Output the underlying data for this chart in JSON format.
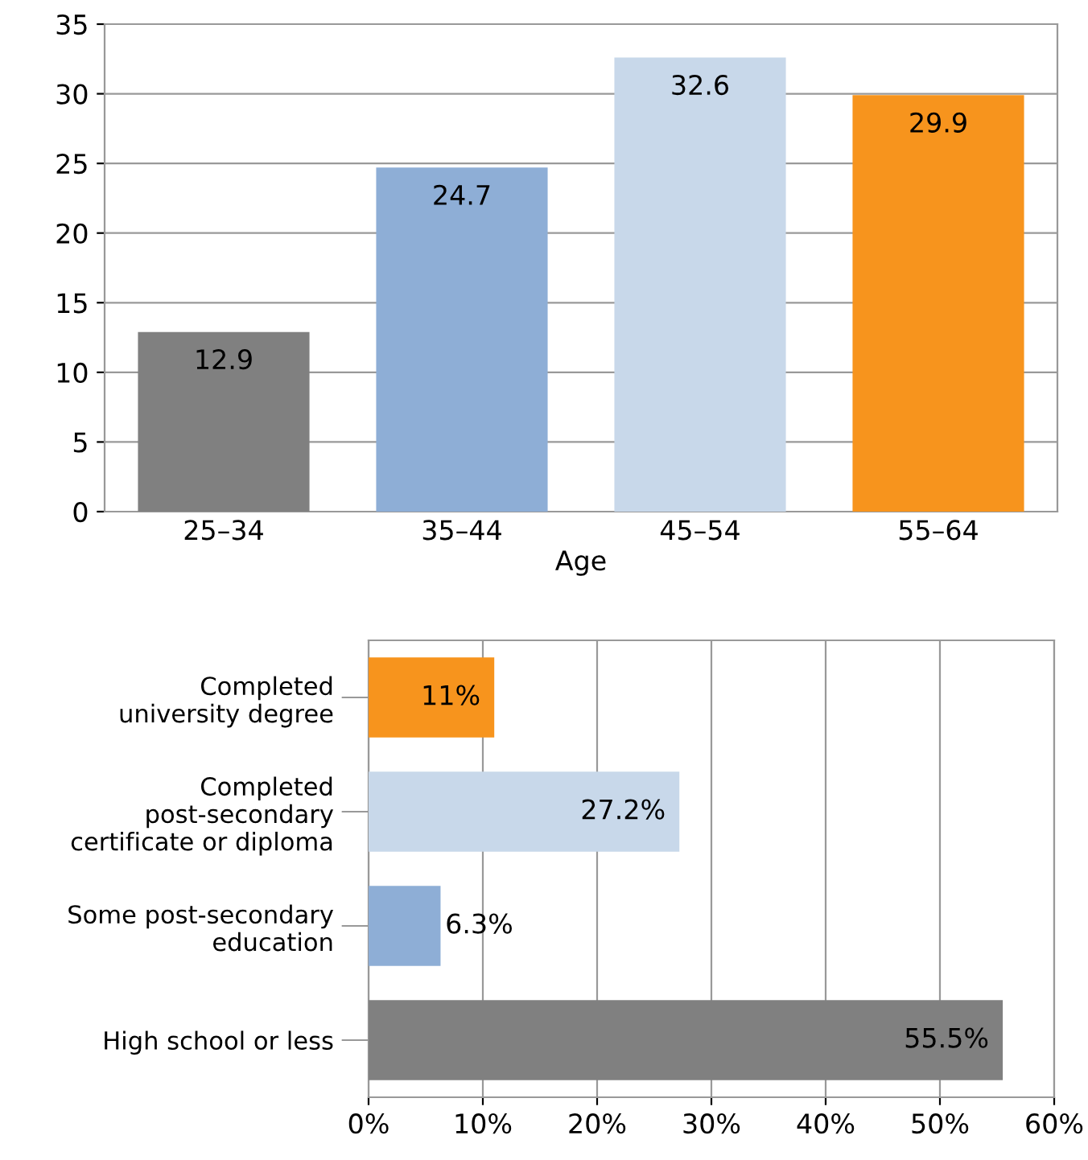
{
  "chart_data": [
    {
      "type": "bar",
      "xlabel": "Age",
      "categories": [
        "25–34",
        "35–44",
        "45–54",
        "55–64"
      ],
      "values": [
        12.9,
        24.7,
        32.6,
        29.9
      ],
      "colors": [
        "#808080",
        "#8eaed6",
        "#c8d8ea",
        "#f7941d"
      ],
      "ylim": [
        0,
        35
      ],
      "yticks": [
        0,
        5,
        10,
        15,
        20,
        25,
        30,
        35
      ],
      "grid": "y",
      "data_labels": true
    },
    {
      "type": "bar",
      "orientation": "horizontal",
      "categories": [
        "Completed\nuniversity degree",
        "Completed\npost-secondary\ncertificate or diploma",
        "Some post-secondary\neducation",
        "High school or less"
      ],
      "values": [
        11,
        27.2,
        6.3,
        55.5
      ],
      "colors": [
        "#f7941d",
        "#c8d8ea",
        "#8eaed6",
        "#808080"
      ],
      "value_labels": [
        "11%",
        "27.2%",
        "6.3%",
        "55.5%"
      ],
      "xlim": [
        0,
        60
      ],
      "xticks": [
        {
          "value": 0,
          "label": "0%"
        },
        {
          "value": 10,
          "label": "10%"
        },
        {
          "value": 20,
          "label": "20%"
        },
        {
          "value": 30,
          "label": "30%"
        },
        {
          "value": 40,
          "label": "40%"
        },
        {
          "value": 50,
          "label": "50%"
        },
        {
          "value": 60,
          "label": "60%"
        }
      ],
      "grid": "x"
    }
  ]
}
